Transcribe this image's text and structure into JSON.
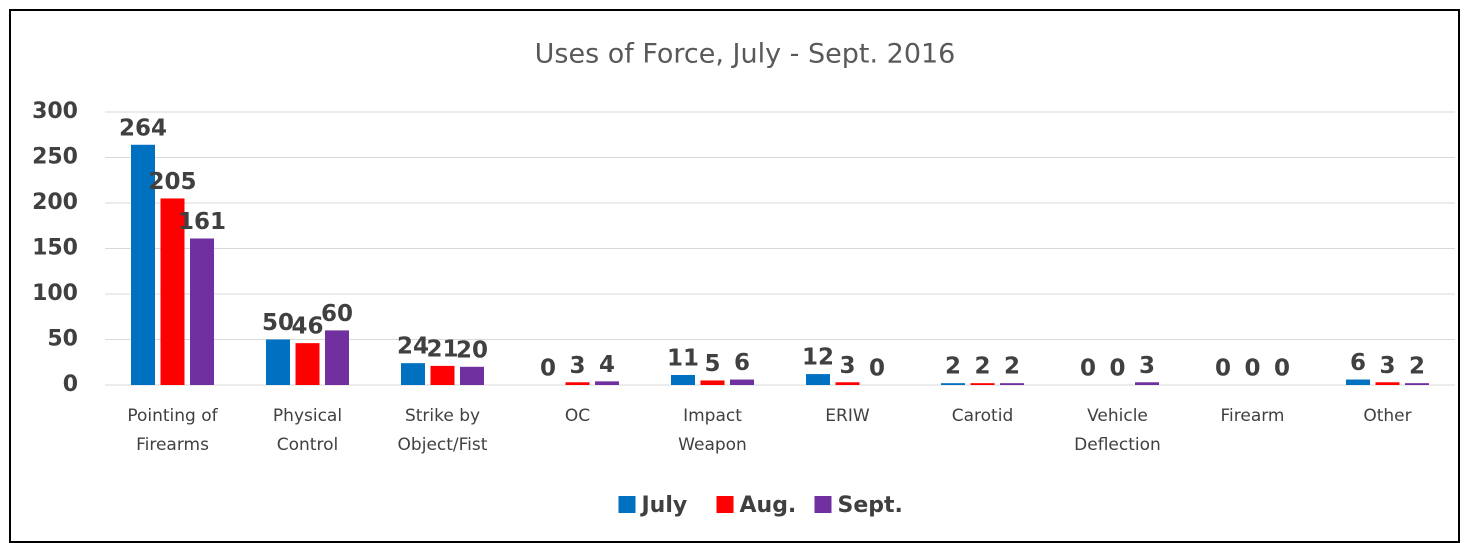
{
  "chart_data": {
    "type": "bar",
    "title": "Uses of Force, July - Sept. 2016",
    "categories": [
      "Pointing of\nFirearms",
      "Physical\nControl",
      "Strike by\nObject/Fist",
      "OC",
      "Impact\nWeapon",
      "ERIW",
      "Carotid",
      "Vehicle\nDeflection",
      "Firearm",
      "Other"
    ],
    "series": [
      {
        "name": "July",
        "color": "#0070c0",
        "values": [
          264,
          50,
          24,
          0,
          11,
          12,
          2,
          0,
          0,
          6
        ]
      },
      {
        "name": "Aug.",
        "color": "#ff0000",
        "values": [
          205,
          46,
          21,
          3,
          5,
          3,
          2,
          0,
          0,
          3
        ]
      },
      {
        "name": "Sept.",
        "color": "#7030a0",
        "values": [
          161,
          60,
          20,
          4,
          6,
          0,
          2,
          3,
          0,
          2
        ]
      }
    ],
    "ylim": [
      0,
      300
    ],
    "yticks": [
      0,
      50,
      100,
      150,
      200,
      250,
      300
    ],
    "grid": true,
    "legend": "bottom"
  }
}
